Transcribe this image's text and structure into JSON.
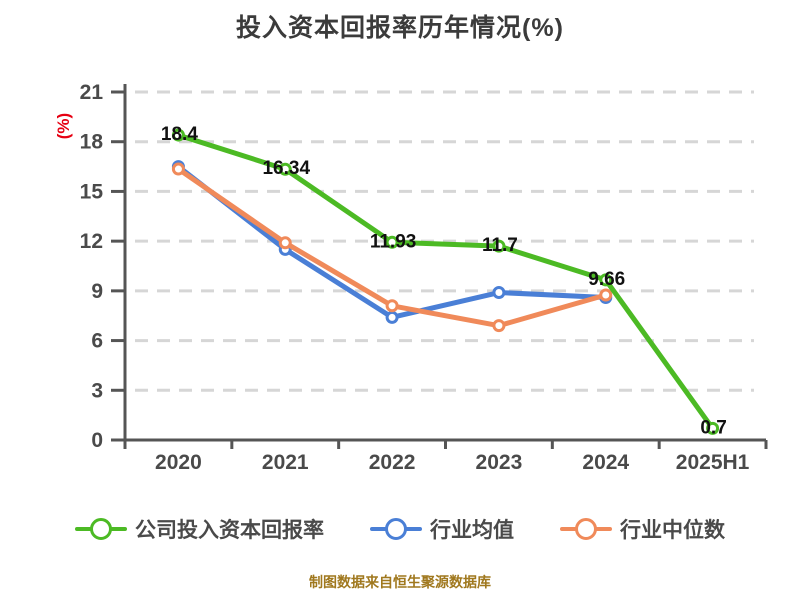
{
  "page": {
    "title": "投入资本回报率历年情况(%)",
    "y_axis_unit": "(%)",
    "footer": "制图数据来自恒生聚源数据库"
  },
  "colors": {
    "title_text": "#3b3b3b",
    "tick_text": "#4a4a4a",
    "axis": "#555555",
    "grid": "#d6d6d6",
    "data_label": "#111111",
    "unit_red": "#e60012",
    "footer_text": "#a0781e",
    "series_green": "#4cba24",
    "series_blue": "#4a7fd6",
    "series_orange": "#f08a5a"
  },
  "chart_data": {
    "type": "line",
    "title": "投入资本回报率历年情况(%)",
    "y_axis_unit": "(%)",
    "categories": [
      "2020",
      "2021",
      "2022",
      "2023",
      "2024",
      "2025H1"
    ],
    "y_ticks": [
      0,
      3,
      6,
      9,
      12,
      15,
      18,
      21
    ],
    "ylim": [
      0,
      21
    ],
    "grid": "horizontal-dashed",
    "legend_position": "bottom",
    "marker_style": "white-filled-circle",
    "series": [
      {
        "name": "公司投入资本回报率",
        "color": "#4cba24",
        "values": [
          18.4,
          16.34,
          11.93,
          11.7,
          9.66,
          0.7
        ],
        "point_labels": [
          "18.4",
          "16.34",
          "11.93",
          "11.7",
          "9.66",
          "0.7"
        ]
      },
      {
        "name": "行业均值",
        "color": "#4a7fd6",
        "values": [
          16.5,
          11.5,
          7.4,
          8.9,
          8.6,
          null
        ],
        "point_labels": null
      },
      {
        "name": "行业中位数",
        "color": "#f08a5a",
        "values": [
          16.35,
          11.9,
          8.1,
          6.9,
          8.75,
          null
        ],
        "point_labels": null
      }
    ]
  }
}
